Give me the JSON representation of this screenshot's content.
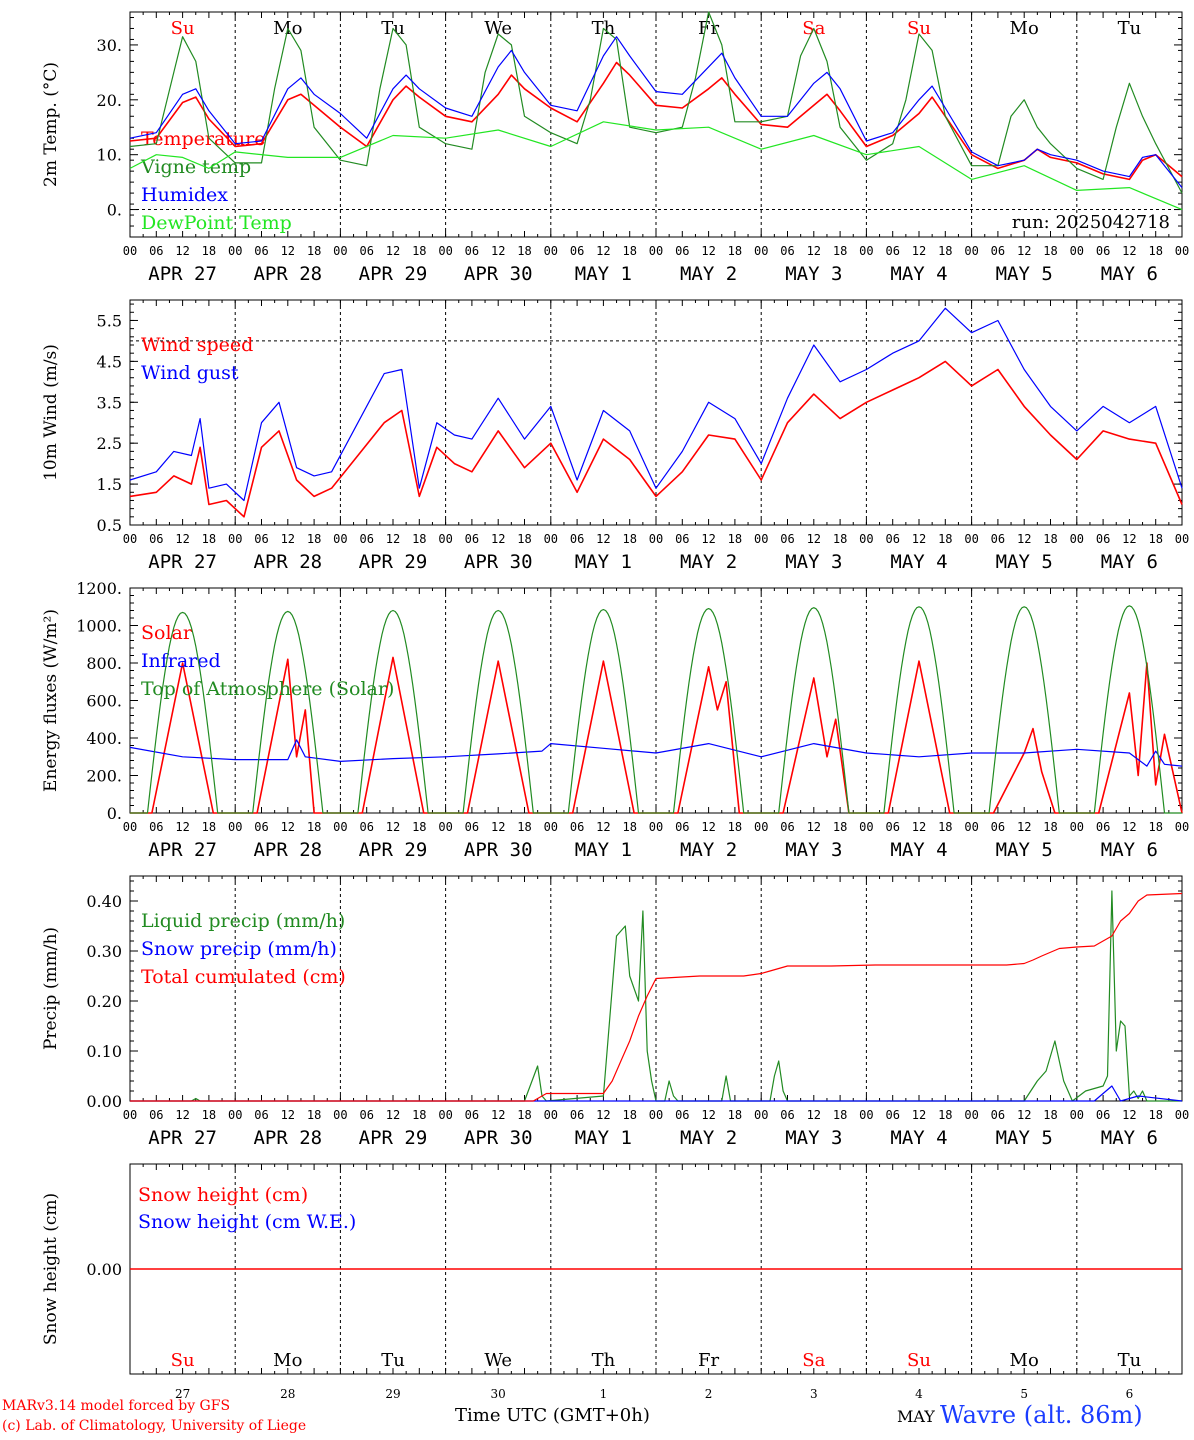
{
  "colors": {
    "red": "#ff0000",
    "green": "#228b22",
    "blue": "#0000ff",
    "lightgreen": "#22e622",
    "black": "#000000"
  },
  "days": {
    "weekday_labels": [
      "Su",
      "Mo",
      "Tu",
      "We",
      "Th",
      "Fr",
      "Sa",
      "Su",
      "Mo",
      "Tu"
    ],
    "weekday_colors": [
      "red",
      "black",
      "black",
      "black",
      "black",
      "black",
      "red",
      "red",
      "black",
      "black"
    ],
    "date_labels": [
      "APR 27",
      "APR 28",
      "APR 29",
      "APR 30",
      "MAY  1",
      "MAY  2",
      "MAY  3",
      "MAY  4",
      "MAY  5",
      "MAY  6"
    ],
    "hour_ticks": [
      "00",
      "06",
      "12",
      "18"
    ],
    "bottom_day_numbers": [
      "27",
      "28",
      "29",
      "30",
      "1",
      "2",
      "3",
      "4",
      "5",
      "6"
    ]
  },
  "footer": {
    "model": "MARv3.14 model forced by GFS",
    "lab": "(c) Lab. of Climatology, University of Liege",
    "time_axis": "Time UTC (GMT+0h)",
    "month": "MAY",
    "station": "Wavre (alt. 86m)"
  },
  "chart_data": [
    {
      "type": "line",
      "ylabel": "2m Temp. (°C)",
      "ylim": [
        -5,
        36
      ],
      "yticks": [
        0,
        10,
        20,
        30
      ],
      "yticklabels": [
        "0.",
        "10.",
        "20.",
        "30."
      ],
      "hline": 0,
      "annotation": "run: 2025042718",
      "series": [
        {
          "name": "Temperature",
          "color": "red",
          "x": [
            0,
            6,
            12,
            15,
            18,
            24,
            30,
            36,
            39,
            42,
            48,
            54,
            60,
            63,
            66,
            72,
            78,
            84,
            87,
            90,
            96,
            102,
            108,
            111,
            114,
            120,
            126,
            132,
            135,
            138,
            144,
            150,
            156,
            159,
            162,
            168,
            174,
            180,
            183,
            186,
            192,
            198,
            204,
            207,
            210,
            216,
            222,
            228,
            231,
            234,
            240
          ],
          "y": [
            12.5,
            13,
            19.5,
            20.5,
            16.5,
            11.5,
            12,
            20,
            21,
            19,
            15,
            11.5,
            20,
            22.5,
            20.5,
            17,
            16,
            21,
            24.5,
            22,
            18.5,
            16,
            23,
            26.8,
            24.5,
            19,
            18.5,
            22,
            24,
            21,
            15.5,
            15,
            19,
            21,
            18,
            11.5,
            13.5,
            17.5,
            20.5,
            17,
            10,
            7.5,
            9,
            11,
            9.5,
            8.5,
            6.5,
            5.5,
            9,
            10,
            6
          ]
        },
        {
          "name": "Vigne temp",
          "color": "green",
          "x": [
            0,
            6,
            10,
            12,
            15,
            18,
            24,
            30,
            33,
            36,
            39,
            42,
            48,
            54,
            57,
            60,
            63,
            66,
            72,
            78,
            81,
            84,
            87,
            90,
            96,
            102,
            105,
            108,
            111,
            114,
            120,
            126,
            129,
            132,
            135,
            138,
            144,
            150,
            153,
            156,
            159,
            162,
            168,
            174,
            177,
            180,
            183,
            186,
            192,
            198,
            201,
            204,
            207,
            210,
            216,
            222,
            225,
            228,
            231,
            234,
            240
          ],
          "y": [
            11.5,
            12,
            25,
            31.5,
            27,
            13,
            8.5,
            8.5,
            22,
            33,
            29,
            15,
            9,
            8,
            22,
            33,
            30,
            15,
            12,
            11,
            25,
            32,
            30,
            17,
            14,
            12,
            20,
            33,
            31,
            15,
            14,
            15,
            24,
            36,
            30,
            16,
            16,
            17,
            28,
            33,
            27,
            15,
            9,
            12,
            20,
            32,
            29,
            17,
            8,
            8,
            17,
            20,
            15,
            12,
            7.5,
            5.5,
            15,
            23,
            17,
            12,
            3
          ]
        },
        {
          "name": "Humidex",
          "color": "blue",
          "x": [
            0,
            6,
            12,
            15,
            18,
            24,
            30,
            36,
            39,
            42,
            48,
            54,
            60,
            63,
            66,
            72,
            78,
            84,
            87,
            90,
            96,
            102,
            108,
            111,
            114,
            120,
            126,
            132,
            135,
            138,
            144,
            150,
            156,
            159,
            162,
            168,
            174,
            180,
            183,
            186,
            192,
            198,
            204,
            207,
            210,
            216,
            222,
            228,
            231,
            234,
            240
          ],
          "y": [
            13,
            14,
            21,
            22,
            18,
            12,
            12.5,
            22,
            24,
            21,
            17.5,
            13,
            22,
            24.5,
            22,
            18.5,
            17,
            26,
            29,
            25,
            19,
            18,
            28,
            31.5,
            28,
            21.5,
            21,
            26,
            28.5,
            24,
            17,
            17,
            23,
            25,
            22,
            12.5,
            14,
            20,
            22.5,
            18.5,
            10.5,
            8,
            9,
            11,
            10,
            9,
            7,
            6,
            9.5,
            10,
            4
          ]
        },
        {
          "name": "DewPoint Temp",
          "color": "lightgreen",
          "x": [
            0,
            6,
            12,
            18,
            24,
            36,
            48,
            60,
            72,
            84,
            96,
            108,
            120,
            132,
            144,
            156,
            168,
            180,
            192,
            204,
            216,
            228,
            240
          ],
          "y": [
            7.5,
            10,
            9.5,
            7.5,
            10.5,
            9.5,
            9.5,
            13.5,
            13,
            14.5,
            11.5,
            16,
            14.5,
            15,
            11,
            13.5,
            10,
            11.5,
            5.5,
            8,
            3.5,
            4,
            0
          ]
        }
      ]
    },
    {
      "type": "line",
      "ylabel": "10m Wind (m/s)",
      "ylim": [
        0.5,
        6.0
      ],
      "yticks": [
        0.5,
        1.5,
        2.5,
        3.5,
        4.5,
        5.5
      ],
      "yticklabels": [
        "0.5",
        "1.5",
        "2.5",
        "3.5",
        "4.5",
        "5.5"
      ],
      "hline": 5,
      "series": [
        {
          "name": "Wind speed",
          "color": "red",
          "x": [
            0,
            6,
            10,
            14,
            16,
            18,
            22,
            26,
            30,
            34,
            38,
            42,
            46,
            52,
            58,
            62,
            66,
            70,
            74,
            78,
            84,
            90,
            96,
            102,
            108,
            114,
            120,
            126,
            132,
            138,
            144,
            150,
            156,
            162,
            168,
            174,
            180,
            186,
            192,
            198,
            204,
            210,
            216,
            222,
            228,
            234,
            240
          ],
          "y": [
            1.2,
            1.3,
            1.7,
            1.5,
            2.4,
            1.0,
            1.1,
            0.7,
            2.4,
            2.8,
            1.6,
            1.2,
            1.4,
            2.2,
            3.0,
            3.3,
            1.2,
            2.4,
            2.0,
            1.8,
            2.8,
            1.9,
            2.5,
            1.3,
            2.6,
            2.1,
            1.2,
            1.8,
            2.7,
            2.6,
            1.6,
            3.0,
            3.7,
            3.1,
            3.5,
            3.8,
            4.1,
            4.5,
            3.9,
            4.3,
            3.4,
            2.7,
            2.1,
            2.8,
            2.6,
            2.5,
            1.0
          ]
        },
        {
          "name": "Wind gust",
          "color": "blue",
          "x": [
            0,
            6,
            10,
            14,
            16,
            18,
            22,
            26,
            30,
            34,
            38,
            42,
            46,
            52,
            58,
            62,
            66,
            70,
            74,
            78,
            84,
            90,
            96,
            102,
            108,
            114,
            120,
            126,
            132,
            138,
            144,
            150,
            156,
            162,
            168,
            174,
            180,
            186,
            192,
            198,
            204,
            210,
            216,
            222,
            228,
            234,
            240
          ],
          "y": [
            1.6,
            1.8,
            2.3,
            2.2,
            3.1,
            1.4,
            1.5,
            1.1,
            3.0,
            3.5,
            1.9,
            1.7,
            1.8,
            3.0,
            4.2,
            4.3,
            1.4,
            3.0,
            2.7,
            2.6,
            3.6,
            2.6,
            3.4,
            1.6,
            3.3,
            2.8,
            1.4,
            2.3,
            3.5,
            3.1,
            2.0,
            3.6,
            4.9,
            4.0,
            4.3,
            4.7,
            5.0,
            5.8,
            5.2,
            5.5,
            4.3,
            3.4,
            2.8,
            3.4,
            3.0,
            3.4,
            1.4
          ]
        }
      ]
    },
    {
      "type": "line",
      "ylabel": "Energy fluxes (W/m²)",
      "ylim": [
        0,
        1200
      ],
      "yticks": [
        0,
        200,
        400,
        600,
        800,
        1000,
        1200
      ],
      "yticklabels": [
        "0.",
        "200.",
        "400.",
        "600.",
        "800.",
        "1000.",
        "1200."
      ],
      "series": [
        {
          "name": "Solar",
          "color": "red",
          "x": [
            0,
            5,
            12,
            19,
            24,
            29,
            36,
            38,
            40,
            42,
            48,
            53,
            60,
            67,
            72,
            77,
            84,
            91,
            96,
            101,
            108,
            115,
            120,
            125,
            132,
            134,
            136,
            139,
            144,
            149,
            156,
            159,
            161,
            164,
            168,
            173,
            180,
            187,
            192,
            197,
            204,
            206,
            208,
            211,
            216,
            221,
            228,
            230,
            232,
            234,
            236,
            240
          ],
          "y": [
            0,
            0,
            800,
            0,
            0,
            0,
            820,
            300,
            550,
            0,
            0,
            0,
            830,
            0,
            0,
            0,
            810,
            0,
            0,
            0,
            810,
            0,
            0,
            0,
            780,
            550,
            700,
            0,
            0,
            0,
            720,
            300,
            500,
            0,
            0,
            0,
            810,
            0,
            0,
            0,
            320,
            450,
            220,
            0,
            0,
            0,
            640,
            200,
            800,
            150,
            420,
            0
          ]
        },
        {
          "name": "Infrared",
          "color": "blue",
          "x": [
            0,
            12,
            24,
            36,
            38,
            40,
            48,
            60,
            72,
            84,
            94,
            96,
            108,
            120,
            132,
            144,
            156,
            168,
            180,
            192,
            204,
            216,
            228,
            232,
            234,
            236,
            240
          ],
          "y": [
            350,
            300,
            285,
            285,
            390,
            300,
            275,
            290,
            300,
            315,
            330,
            370,
            345,
            320,
            370,
            300,
            370,
            320,
            300,
            320,
            320,
            340,
            320,
            250,
            330,
            260,
            250
          ]
        },
        {
          "name": "Top of Atmosphere (Solar)",
          "color": "green",
          "sun": true,
          "peaks": [
            1070,
            1075,
            1080,
            1080,
            1085,
            1090,
            1095,
            1100,
            1100,
            1105
          ]
        }
      ]
    },
    {
      "type": "line",
      "ylabel": "Precip (mm/h)",
      "ylim": [
        0,
        0.45
      ],
      "yticks": [
        0,
        0.1,
        0.2,
        0.3,
        0.4
      ],
      "yticklabels": [
        "0.00",
        "0.10",
        "0.20",
        "0.30",
        "0.40"
      ],
      "series": [
        {
          "name": "Liquid precip (mm/h)",
          "color": "green",
          "x": [
            0,
            14,
            15,
            16,
            90,
            93,
            94,
            95,
            108,
            111,
            113,
            114,
            116,
            117,
            118,
            119,
            120,
            121,
            122,
            123,
            124,
            125,
            126,
            135,
            136,
            137,
            146,
            147,
            148,
            149,
            150,
            204,
            207,
            209,
            211,
            213,
            215,
            218,
            222,
            223,
            224,
            225,
            226,
            227,
            228,
            229,
            230,
            231,
            232,
            236,
            240
          ],
          "y": [
            0,
            0,
            0.005,
            0,
            0,
            0.07,
            0.01,
            0,
            0.01,
            0.33,
            0.35,
            0.25,
            0.2,
            0.38,
            0.1,
            0.04,
            0,
            0,
            0,
            0.04,
            0.01,
            0,
            0,
            0,
            0.05,
            0,
            0,
            0.05,
            0.08,
            0.02,
            0,
            0,
            0.04,
            0.06,
            0.12,
            0.04,
            0,
            0.02,
            0.03,
            0.05,
            0.42,
            0.1,
            0.16,
            0.15,
            0.01,
            0.02,
            0.005,
            0.02,
            0,
            0,
            0
          ]
        },
        {
          "name": "Snow precip (mm/h)",
          "color": "blue",
          "x": [
            0,
            220,
            224,
            226,
            230,
            240
          ],
          "y": [
            0,
            0,
            0.03,
            0,
            0.01,
            0
          ]
        },
        {
          "name": "Total cumulated (cm)",
          "color": "red",
          "x": [
            0,
            92,
            95,
            108,
            110,
            112,
            114,
            116,
            118,
            120,
            130,
            140,
            144,
            146,
            150,
            160,
            170,
            180,
            190,
            200,
            204,
            206,
            208,
            212,
            216,
            220,
            224,
            226,
            228,
            230,
            232,
            240
          ],
          "y": [
            0,
            0,
            0.015,
            0.015,
            0.04,
            0.08,
            0.12,
            0.17,
            0.21,
            0.245,
            0.25,
            0.25,
            0.255,
            0.26,
            0.27,
            0.27,
            0.272,
            0.272,
            0.272,
            0.272,
            0.275,
            0.282,
            0.29,
            0.305,
            0.308,
            0.31,
            0.33,
            0.36,
            0.375,
            0.4,
            0.412,
            0.415
          ]
        }
      ]
    },
    {
      "type": "line",
      "ylabel": "Snow height (cm)",
      "ylim": [
        -0.05,
        0.05
      ],
      "yticks": [
        0
      ],
      "yticklabels": [
        "0.00"
      ],
      "series": [
        {
          "name": "Snow height (cm)",
          "color": "red",
          "x": [
            0,
            240
          ],
          "y": [
            0,
            0
          ]
        },
        {
          "name": "Snow height (cm W.E.)",
          "color": "blue",
          "legend_only": true,
          "x": [],
          "y": []
        }
      ]
    }
  ]
}
